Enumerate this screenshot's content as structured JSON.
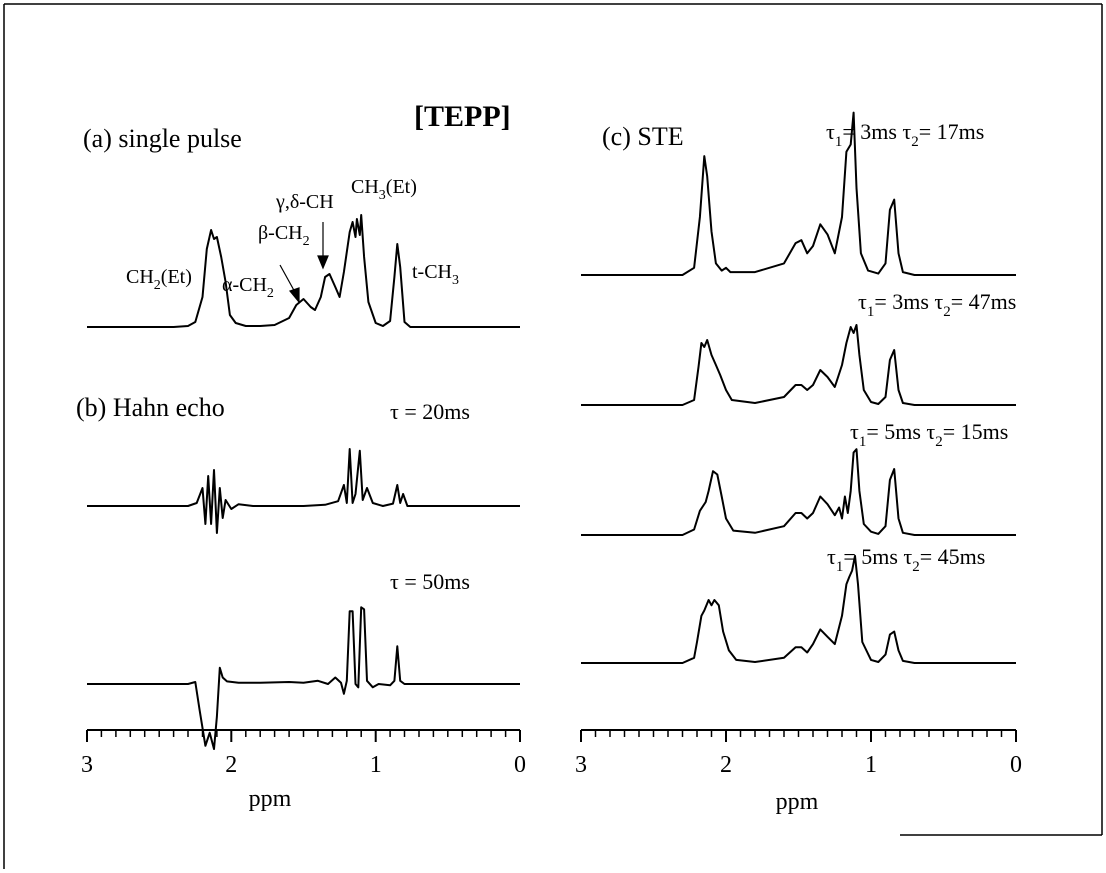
{
  "figure": {
    "compound_label": "[TEPP]"
  },
  "chart_data": [
    {
      "type": "line",
      "panel": "a",
      "title": "(a) single pulse",
      "xlabel": "",
      "xlim": [
        3,
        0
      ],
      "x_reversed": true,
      "series": [
        {
          "points": [
            [
              3.0,
              0
            ],
            [
              2.4,
              0
            ],
            [
              2.3,
              0.01
            ],
            [
              2.25,
              0.05
            ],
            [
              2.2,
              0.3
            ],
            [
              2.17,
              0.78
            ],
            [
              2.14,
              0.97
            ],
            [
              2.12,
              0.88
            ],
            [
              2.1,
              0.9
            ],
            [
              2.07,
              0.7
            ],
            [
              2.04,
              0.45
            ],
            [
              2.01,
              0.12
            ],
            [
              1.97,
              0.04
            ],
            [
              1.9,
              0.01
            ],
            [
              1.8,
              0.01
            ],
            [
              1.7,
              0.02
            ],
            [
              1.6,
              0.09
            ],
            [
              1.55,
              0.22
            ],
            [
              1.5,
              0.28
            ],
            [
              1.45,
              0.2
            ],
            [
              1.42,
              0.17
            ],
            [
              1.38,
              0.3
            ],
            [
              1.35,
              0.5
            ],
            [
              1.32,
              0.53
            ],
            [
              1.28,
              0.4
            ],
            [
              1.25,
              0.3
            ],
            [
              1.22,
              0.55
            ],
            [
              1.18,
              0.95
            ],
            [
              1.16,
              1.05
            ],
            [
              1.14,
              0.9
            ],
            [
              1.13,
              1.08
            ],
            [
              1.11,
              0.92
            ],
            [
              1.1,
              1.12
            ],
            [
              1.08,
              0.7
            ],
            [
              1.05,
              0.25
            ],
            [
              1.0,
              0.04
            ],
            [
              0.95,
              0.01
            ],
            [
              0.9,
              0.06
            ],
            [
              0.87,
              0.5
            ],
            [
              0.85,
              0.83
            ],
            [
              0.83,
              0.6
            ],
            [
              0.8,
              0.05
            ],
            [
              0.76,
              0
            ],
            [
              0.0,
              0
            ]
          ]
        }
      ],
      "annotations": [
        "CH2(Et)",
        "α-CH2",
        "β-CH2",
        "γ,δ-CH",
        "CH3(Et)",
        "t-CH3"
      ]
    },
    {
      "type": "line",
      "panel": "b",
      "title": "(b) Hahn echo",
      "xlabel": "ppm",
      "xlim": [
        3,
        0
      ],
      "x_reversed": true,
      "x_ticks": [
        "3",
        "2",
        "1",
        "0"
      ],
      "series": [
        {
          "name": "τ = 20ms",
          "points": [
            [
              3.0,
              0
            ],
            [
              2.3,
              0
            ],
            [
              2.24,
              0.05
            ],
            [
              2.2,
              0.3
            ],
            [
              2.18,
              -0.3
            ],
            [
              2.16,
              0.5
            ],
            [
              2.14,
              -0.3
            ],
            [
              2.12,
              0.6
            ],
            [
              2.1,
              -0.45
            ],
            [
              2.08,
              0.3
            ],
            [
              2.06,
              -0.2
            ],
            [
              2.04,
              0.1
            ],
            [
              2.0,
              -0.05
            ],
            [
              1.95,
              0.03
            ],
            [
              1.85,
              0
            ],
            [
              1.5,
              0
            ],
            [
              1.35,
              0.02
            ],
            [
              1.26,
              0.08
            ],
            [
              1.22,
              0.35
            ],
            [
              1.2,
              0.05
            ],
            [
              1.18,
              0.95
            ],
            [
              1.16,
              0.05
            ],
            [
              1.14,
              0.2
            ],
            [
              1.11,
              0.92
            ],
            [
              1.09,
              0.1
            ],
            [
              1.06,
              0.3
            ],
            [
              1.02,
              0.05
            ],
            [
              0.95,
              0
            ],
            [
              0.88,
              0.04
            ],
            [
              0.85,
              0.35
            ],
            [
              0.83,
              0.05
            ],
            [
              0.81,
              0.2
            ],
            [
              0.78,
              0
            ],
            [
              0.0,
              0
            ]
          ]
        },
        {
          "name": "τ = 50ms",
          "points": [
            [
              3.0,
              0
            ],
            [
              2.3,
              0
            ],
            [
              2.25,
              0.03
            ],
            [
              2.22,
              -0.4
            ],
            [
              2.18,
              -0.95
            ],
            [
              2.15,
              -0.75
            ],
            [
              2.12,
              -1.0
            ],
            [
              2.1,
              -0.5
            ],
            [
              2.08,
              0.25
            ],
            [
              2.06,
              0.1
            ],
            [
              2.03,
              0.04
            ],
            [
              1.95,
              0.02
            ],
            [
              1.8,
              0.02
            ],
            [
              1.6,
              0.03
            ],
            [
              1.5,
              0.02
            ],
            [
              1.4,
              0.05
            ],
            [
              1.33,
              0.0
            ],
            [
              1.28,
              0.1
            ],
            [
              1.24,
              0.02
            ],
            [
              1.22,
              -0.15
            ],
            [
              1.2,
              0.05
            ],
            [
              1.18,
              1.12
            ],
            [
              1.16,
              1.12
            ],
            [
              1.14,
              0.0
            ],
            [
              1.12,
              -0.05
            ],
            [
              1.1,
              1.18
            ],
            [
              1.08,
              1.15
            ],
            [
              1.06,
              0.05
            ],
            [
              1.02,
              -0.05
            ],
            [
              0.98,
              0.0
            ],
            [
              0.9,
              -0.02
            ],
            [
              0.87,
              0.05
            ],
            [
              0.85,
              0.58
            ],
            [
              0.83,
              0.05
            ],
            [
              0.8,
              0
            ],
            [
              0.0,
              0
            ]
          ]
        }
      ]
    },
    {
      "type": "line",
      "panel": "c",
      "title": "(c) STE",
      "xlabel": "ppm",
      "xlim": [
        3,
        0
      ],
      "x_reversed": true,
      "x_ticks": [
        "3",
        "2",
        "1",
        "0"
      ],
      "series": [
        {
          "name": "τ1= 3ms τ2= 17ms",
          "points": [
            [
              3.0,
              0
            ],
            [
              2.3,
              0
            ],
            [
              2.22,
              0.05
            ],
            [
              2.18,
              0.4
            ],
            [
              2.15,
              0.82
            ],
            [
              2.13,
              0.68
            ],
            [
              2.1,
              0.3
            ],
            [
              2.07,
              0.08
            ],
            [
              2.03,
              0.03
            ],
            [
              2.0,
              0.05
            ],
            [
              1.97,
              0.02
            ],
            [
              1.8,
              0.02
            ],
            [
              1.6,
              0.08
            ],
            [
              1.52,
              0.22
            ],
            [
              1.48,
              0.24
            ],
            [
              1.44,
              0.15
            ],
            [
              1.4,
              0.2
            ],
            [
              1.35,
              0.35
            ],
            [
              1.3,
              0.28
            ],
            [
              1.25,
              0.15
            ],
            [
              1.2,
              0.4
            ],
            [
              1.17,
              0.85
            ],
            [
              1.14,
              0.9
            ],
            [
              1.12,
              1.12
            ],
            [
              1.1,
              0.6
            ],
            [
              1.07,
              0.15
            ],
            [
              1.02,
              0.03
            ],
            [
              0.95,
              0.01
            ],
            [
              0.9,
              0.08
            ],
            [
              0.87,
              0.45
            ],
            [
              0.84,
              0.52
            ],
            [
              0.81,
              0.15
            ],
            [
              0.78,
              0.02
            ],
            [
              0.7,
              0
            ],
            [
              0.0,
              0
            ]
          ]
        },
        {
          "name": "τ1= 3ms τ2= 47ms",
          "points": [
            [
              3.0,
              0
            ],
            [
              2.3,
              0
            ],
            [
              2.22,
              0.05
            ],
            [
              2.19,
              0.38
            ],
            [
              2.17,
              0.62
            ],
            [
              2.15,
              0.58
            ],
            [
              2.13,
              0.65
            ],
            [
              2.1,
              0.5
            ],
            [
              2.07,
              0.4
            ],
            [
              2.04,
              0.3
            ],
            [
              2.0,
              0.15
            ],
            [
              1.96,
              0.05
            ],
            [
              1.8,
              0.02
            ],
            [
              1.6,
              0.08
            ],
            [
              1.52,
              0.2
            ],
            [
              1.48,
              0.2
            ],
            [
              1.44,
              0.15
            ],
            [
              1.4,
              0.2
            ],
            [
              1.35,
              0.35
            ],
            [
              1.3,
              0.28
            ],
            [
              1.25,
              0.18
            ],
            [
              1.2,
              0.4
            ],
            [
              1.17,
              0.62
            ],
            [
              1.14,
              0.78
            ],
            [
              1.12,
              0.72
            ],
            [
              1.1,
              0.8
            ],
            [
              1.08,
              0.5
            ],
            [
              1.05,
              0.15
            ],
            [
              1.0,
              0.03
            ],
            [
              0.95,
              0.01
            ],
            [
              0.9,
              0.08
            ],
            [
              0.87,
              0.45
            ],
            [
              0.84,
              0.55
            ],
            [
              0.81,
              0.15
            ],
            [
              0.78,
              0.02
            ],
            [
              0.7,
              0
            ],
            [
              0.0,
              0
            ]
          ]
        },
        {
          "name": "τ1= 5ms τ2= 15ms",
          "points": [
            [
              3.0,
              0
            ],
            [
              2.3,
              0
            ],
            [
              2.22,
              0.05
            ],
            [
              2.18,
              0.22
            ],
            [
              2.14,
              0.3
            ],
            [
              2.12,
              0.4
            ],
            [
              2.09,
              0.58
            ],
            [
              2.06,
              0.55
            ],
            [
              2.03,
              0.35
            ],
            [
              2.0,
              0.15
            ],
            [
              1.95,
              0.04
            ],
            [
              1.8,
              0.02
            ],
            [
              1.6,
              0.08
            ],
            [
              1.52,
              0.2
            ],
            [
              1.48,
              0.2
            ],
            [
              1.44,
              0.15
            ],
            [
              1.4,
              0.2
            ],
            [
              1.35,
              0.35
            ],
            [
              1.3,
              0.28
            ],
            [
              1.25,
              0.18
            ],
            [
              1.22,
              0.25
            ],
            [
              1.2,
              0.15
            ],
            [
              1.18,
              0.35
            ],
            [
              1.16,
              0.2
            ],
            [
              1.14,
              0.4
            ],
            [
              1.12,
              0.75
            ],
            [
              1.1,
              0.78
            ],
            [
              1.08,
              0.4
            ],
            [
              1.05,
              0.1
            ],
            [
              1.0,
              0.03
            ],
            [
              0.95,
              0.01
            ],
            [
              0.9,
              0.08
            ],
            [
              0.87,
              0.5
            ],
            [
              0.84,
              0.6
            ],
            [
              0.81,
              0.15
            ],
            [
              0.78,
              0.02
            ],
            [
              0.7,
              0
            ],
            [
              0.0,
              0
            ]
          ]
        },
        {
          "name": "τ1= 5ms τ2= 45ms",
          "points": [
            [
              3.0,
              0
            ],
            [
              2.3,
              0
            ],
            [
              2.22,
              0.05
            ],
            [
              2.2,
              0.2
            ],
            [
              2.17,
              0.45
            ],
            [
              2.15,
              0.5
            ],
            [
              2.12,
              0.6
            ],
            [
              2.1,
              0.55
            ],
            [
              2.08,
              0.6
            ],
            [
              2.05,
              0.55
            ],
            [
              2.02,
              0.3
            ],
            [
              1.98,
              0.12
            ],
            [
              1.93,
              0.03
            ],
            [
              1.8,
              0.01
            ],
            [
              1.6,
              0.05
            ],
            [
              1.52,
              0.15
            ],
            [
              1.48,
              0.15
            ],
            [
              1.44,
              0.1
            ],
            [
              1.4,
              0.18
            ],
            [
              1.35,
              0.32
            ],
            [
              1.3,
              0.25
            ],
            [
              1.25,
              0.18
            ],
            [
              1.2,
              0.45
            ],
            [
              1.17,
              0.75
            ],
            [
              1.15,
              0.82
            ],
            [
              1.13,
              0.88
            ],
            [
              1.11,
              1.02
            ],
            [
              1.09,
              0.75
            ],
            [
              1.06,
              0.2
            ],
            [
              1.0,
              0.03
            ],
            [
              0.95,
              0.01
            ],
            [
              0.9,
              0.08
            ],
            [
              0.87,
              0.27
            ],
            [
              0.84,
              0.3
            ],
            [
              0.81,
              0.12
            ],
            [
              0.78,
              0.02
            ],
            [
              0.7,
              0
            ],
            [
              0.0,
              0
            ]
          ]
        }
      ]
    }
  ]
}
